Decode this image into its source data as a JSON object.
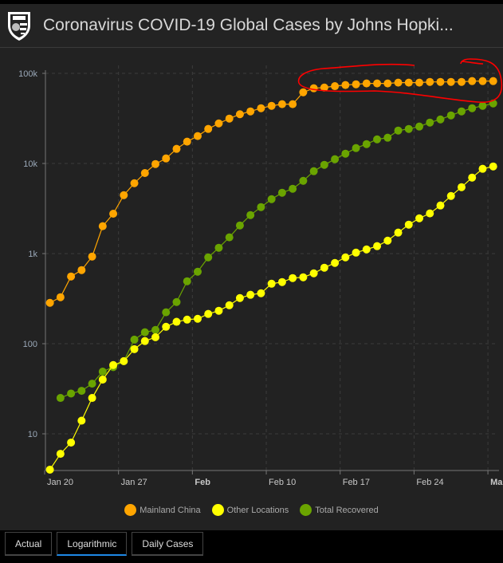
{
  "header": {
    "title": "Coronavirus COVID-19 Global Cases by Johns Hopki...",
    "menu_icon": "vertical-ellipsis-icon",
    "logo": "johns-hopkins-shield-logo"
  },
  "tabs": [
    {
      "label": "Actual",
      "active": false
    },
    {
      "label": "Logarithmic",
      "active": true
    },
    {
      "label": "Daily Cases",
      "active": false
    }
  ],
  "colors": {
    "china": "#ffa500",
    "other": "#ffff00",
    "recovered": "#6aa400",
    "annotation": "#ff0000",
    "accent": "#1e88e5"
  },
  "chart_data": {
    "type": "line",
    "yscale": "log",
    "ylim": [
      3,
      100000
    ],
    "yticks": [
      {
        "value": 100000,
        "label": "100k"
      },
      {
        "value": 10000,
        "label": "10k"
      },
      {
        "value": 1000,
        "label": "1k"
      },
      {
        "value": 100,
        "label": "100"
      },
      {
        "value": 10,
        "label": "10"
      }
    ],
    "xticks": [
      {
        "day": 0,
        "label": "Jan 20",
        "bold": false
      },
      {
        "day": 7,
        "label": "Jan 27",
        "bold": false
      },
      {
        "day": 14,
        "label": "Feb",
        "bold": true
      },
      {
        "day": 21,
        "label": "Feb 10",
        "bold": false
      },
      {
        "day": 28,
        "label": "Feb 17",
        "bold": false
      },
      {
        "day": 35,
        "label": "Feb 24",
        "bold": false
      },
      {
        "day": 42,
        "label": "Mar",
        "bold": true
      }
    ],
    "x_start": "Jan 20",
    "grid": true,
    "legend_position": "bottom",
    "series": [
      {
        "name": "Mainland China",
        "color": "#ffa500",
        "values": [
          284,
          328,
          557,
          656,
          927,
          2014,
          2770,
          4450,
          6040,
          7830,
          9860,
          11380,
          14530,
          17470,
          20140,
          24180,
          27850,
          31500,
          35200,
          37840,
          41030,
          43640,
          45500,
          45500,
          61650,
          68350,
          69660,
          72130,
          74200,
          75650,
          77300,
          77300,
          77300,
          78900,
          78900,
          78900,
          80400,
          80400,
          80400,
          80400,
          82100,
          82100,
          82100
        ]
      },
      {
        "name": "Other Locations",
        "color": "#ffff00",
        "values": [
          4,
          6,
          8,
          14,
          25,
          40,
          58,
          64,
          87,
          107,
          118,
          154,
          175,
          185,
          189,
          214,
          232,
          267,
          321,
          349,
          363,
          463,
          483,
          535,
          546,
          604,
          697,
          787,
          908,
          1025,
          1113,
          1209,
          1393,
          1710,
          2095,
          2465,
          2790,
          3420,
          4360,
          5460,
          6970,
          8730,
          9270
        ]
      },
      {
        "name": "Total Recovered",
        "color": "#6aa400",
        "values": [
          null,
          25,
          28,
          30,
          36,
          49,
          55,
          64,
          111,
          134,
          142,
          223,
          290,
          493,
          629,
          908,
          1160,
          1514,
          2053,
          2676,
          3280,
          4016,
          4735,
          5240,
          6420,
          8210,
          9660,
          11150,
          12850,
          14830,
          16400,
          18530,
          19320,
          23200,
          24170,
          25700,
          28440,
          30840,
          34170,
          37840,
          41030,
          43640,
          46350
        ]
      }
    ]
  }
}
